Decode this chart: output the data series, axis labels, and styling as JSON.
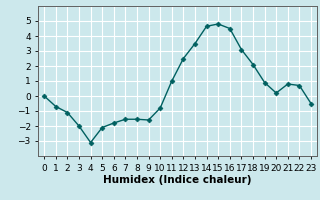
{
  "x": [
    0,
    1,
    2,
    3,
    4,
    5,
    6,
    7,
    8,
    9,
    10,
    11,
    12,
    13,
    14,
    15,
    16,
    17,
    18,
    19,
    20,
    21,
    22,
    23
  ],
  "y": [
    0.0,
    -0.7,
    -1.1,
    -2.0,
    -3.1,
    -2.1,
    -1.8,
    -1.55,
    -1.55,
    -1.6,
    -0.8,
    1.0,
    2.5,
    3.5,
    4.65,
    4.8,
    4.5,
    3.1,
    2.1,
    0.9,
    0.2,
    0.8,
    0.7,
    -0.5
  ],
  "line_color": "#006060",
  "marker": "D",
  "marker_size": 2.5,
  "xlabel": "Humidex (Indice chaleur)",
  "xlim": [
    -0.5,
    23.5
  ],
  "ylim": [
    -4.0,
    6.0
  ],
  "yticks": [
    -3,
    -2,
    -1,
    0,
    1,
    2,
    3,
    4,
    5
  ],
  "xtick_labels": [
    "0",
    "1",
    "2",
    "3",
    "4",
    "5",
    "6",
    "7",
    "8",
    "9",
    "10",
    "11",
    "12",
    "13",
    "14",
    "15",
    "16",
    "17",
    "18",
    "19",
    "20",
    "21",
    "22",
    "23"
  ],
  "background_color": "#cce8ec",
  "grid_color": "#ffffff",
  "tick_fontsize": 6.5,
  "xlabel_fontsize": 7.5,
  "linewidth": 1.0
}
